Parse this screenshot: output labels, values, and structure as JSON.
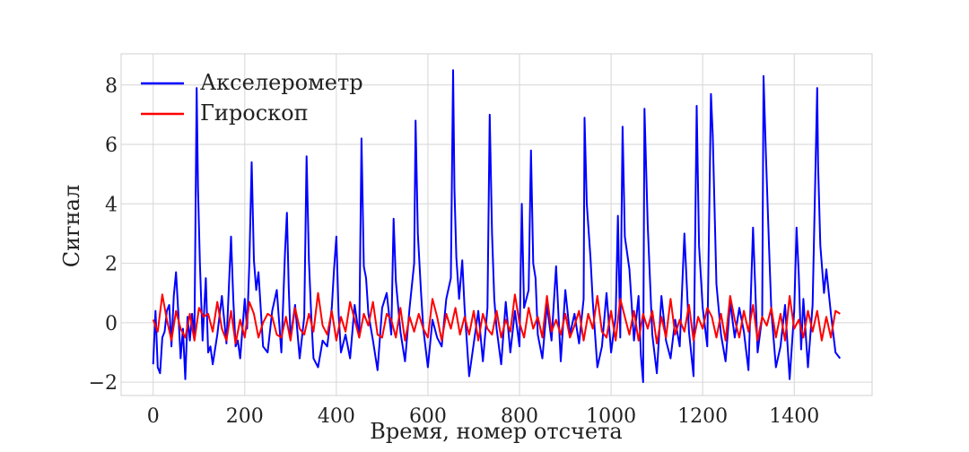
{
  "chart_data": {
    "type": "line",
    "xlabel": "Время, номер отсчета",
    "ylabel": "Сигнал",
    "xlim": [
      -70,
      1570
    ],
    "ylim": [
      -2.45,
      9.05
    ],
    "xticks": [
      0,
      200,
      400,
      600,
      800,
      1000,
      1200,
      1400
    ],
    "yticks": [
      -2,
      0,
      2,
      4,
      6,
      8
    ],
    "ytick_labels": [
      "−2",
      "0",
      "2",
      "4",
      "6",
      "8"
    ],
    "grid": true,
    "legend": "top-left",
    "series": [
      {
        "name": "Акселерометр",
        "color": "#0000ff",
        "x": [
          0,
          5,
          10,
          15,
          20,
          25,
          30,
          35,
          40,
          45,
          50,
          55,
          60,
          65,
          70,
          75,
          80,
          85,
          90,
          95,
          98,
          102,
          108,
          115,
          120,
          125,
          130,
          140,
          150,
          160,
          170,
          175,
          180,
          185,
          190,
          200,
          205,
          210,
          215,
          220,
          225,
          230,
          240,
          250,
          260,
          270,
          280,
          288,
          292,
          296,
          300,
          310,
          320,
          330,
          335,
          340,
          345,
          350,
          360,
          370,
          380,
          390,
          395,
          400,
          405,
          410,
          420,
          430,
          440,
          450,
          455,
          460,
          465,
          470,
          480,
          490,
          500,
          510,
          520,
          525,
          530,
          540,
          550,
          560,
          570,
          573,
          578,
          585,
          590,
          600,
          610,
          620,
          630,
          640,
          650,
          655,
          658,
          662,
          668,
          675,
          680,
          690,
          700,
          710,
          720,
          730,
          735,
          740,
          745,
          750,
          760,
          770,
          780,
          790,
          800,
          805,
          810,
          820,
          825,
          830,
          835,
          840,
          850,
          860,
          870,
          880,
          890,
          900,
          910,
          920,
          930,
          940,
          942,
          947,
          955,
          960,
          970,
          980,
          990,
          1000,
          1010,
          1015,
          1020,
          1025,
          1030,
          1040,
          1050,
          1060,
          1065,
          1070,
          1073,
          1080,
          1090,
          1100,
          1110,
          1120,
          1130,
          1140,
          1150,
          1160,
          1170,
          1180,
          1187,
          1192,
          1200,
          1210,
          1218,
          1222,
          1230,
          1240,
          1250,
          1260,
          1270,
          1280,
          1290,
          1300,
          1310,
          1320,
          1330,
          1333,
          1338,
          1345,
          1350,
          1360,
          1370,
          1380,
          1390,
          1400,
          1405,
          1410,
          1415,
          1420,
          1430,
          1440,
          1450,
          1452,
          1457,
          1465,
          1470,
          1480,
          1490,
          1500
        ],
        "values": [
          -1.4,
          0.4,
          -1.5,
          -1.7,
          -0.5,
          -0.3,
          0.4,
          0.6,
          -0.8,
          0.9,
          1.7,
          0.3,
          -1.2,
          -0.2,
          -1.9,
          0.2,
          -0.6,
          0.3,
          -0.5,
          7.9,
          4.5,
          2.0,
          -0.6,
          1.5,
          -1.0,
          -0.8,
          -1.4,
          -0.4,
          0.9,
          -0.7,
          2.9,
          0.8,
          -0.8,
          -0.6,
          -1.2,
          0.8,
          -0.2,
          2.0,
          5.4,
          2.1,
          1.1,
          1.7,
          -0.8,
          -1.0,
          0.4,
          1.1,
          -1.0,
          2.4,
          3.7,
          1.2,
          -0.5,
          0.6,
          -1.2,
          0.2,
          5.6,
          2.1,
          0.3,
          -1.2,
          -1.5,
          -0.6,
          -0.8,
          0.5,
          1.8,
          2.9,
          0.3,
          -1.0,
          -0.4,
          -1.2,
          0.6,
          -0.5,
          6.2,
          1.9,
          1.5,
          0.3,
          -0.6,
          -1.6,
          0.5,
          1.0,
          -0.4,
          3.5,
          1.4,
          -0.3,
          -1.3,
          0.5,
          2.0,
          6.8,
          3.0,
          1.0,
          -0.2,
          -1.5,
          0.1,
          -0.5,
          -0.8,
          0.8,
          1.5,
          8.5,
          4.5,
          2.2,
          0.8,
          2.1,
          0.5,
          -1.8,
          -0.7,
          0.4,
          -1.3,
          0.5,
          7.0,
          3.0,
          0.8,
          -0.2,
          -1.4,
          0.7,
          -1.0,
          0.4,
          -0.8,
          4.0,
          0.5,
          1.1,
          5.8,
          2.0,
          1.5,
          -0.4,
          -1.2,
          0.6,
          -0.6,
          1.9,
          -1.3,
          1.1,
          -0.4,
          0.3,
          -0.7,
          0.8,
          6.9,
          4.0,
          2.2,
          0.7,
          -1.5,
          -0.8,
          1.0,
          -1.0,
          0.2,
          3.6,
          -0.5,
          6.6,
          2.9,
          1.8,
          -0.6,
          0.9,
          -1.1,
          -2.0,
          7.2,
          3.3,
          -0.4,
          -1.7,
          0.9,
          -0.6,
          -1.2,
          0.1,
          -0.8,
          3.0,
          -0.3,
          -1.8,
          7.3,
          2.6,
          0.5,
          -0.8,
          7.7,
          6.3,
          1.3,
          -0.4,
          -1.3,
          0.7,
          -0.5,
          0.5,
          -0.3,
          -1.6,
          3.2,
          -1.0,
          0.2,
          8.3,
          5.7,
          2.5,
          0.4,
          -1.5,
          -0.8,
          0.6,
          -1.9,
          0.4,
          3.2,
          1.6,
          -0.9,
          0.8,
          -1.5,
          0.6,
          7.9,
          5.3,
          2.6,
          1.0,
          1.8,
          0.3,
          -1.0,
          -1.2
        ]
      },
      {
        "name": "Гироскоп",
        "color": "#ff0000",
        "x": [
          0,
          10,
          20,
          30,
          40,
          50,
          60,
          70,
          80,
          90,
          100,
          110,
          120,
          130,
          140,
          150,
          160,
          170,
          180,
          190,
          200,
          210,
          220,
          230,
          240,
          250,
          260,
          270,
          280,
          290,
          300,
          310,
          320,
          330,
          340,
          350,
          360,
          370,
          380,
          390,
          400,
          410,
          420,
          430,
          440,
          450,
          460,
          470,
          480,
          490,
          500,
          510,
          520,
          530,
          540,
          550,
          560,
          570,
          580,
          590,
          600,
          610,
          620,
          630,
          640,
          650,
          660,
          670,
          680,
          690,
          700,
          710,
          720,
          730,
          740,
          750,
          760,
          770,
          780,
          790,
          800,
          810,
          820,
          830,
          840,
          850,
          860,
          870,
          880,
          890,
          900,
          910,
          920,
          930,
          940,
          950,
          960,
          970,
          980,
          990,
          1000,
          1010,
          1020,
          1030,
          1040,
          1050,
          1060,
          1070,
          1080,
          1090,
          1100,
          1110,
          1120,
          1130,
          1140,
          1150,
          1160,
          1170,
          1180,
          1190,
          1200,
          1210,
          1220,
          1230,
          1240,
          1250,
          1260,
          1270,
          1280,
          1290,
          1300,
          1310,
          1320,
          1330,
          1340,
          1350,
          1360,
          1370,
          1380,
          1390,
          1400,
          1410,
          1420,
          1430,
          1440,
          1450,
          1460,
          1470,
          1480,
          1490,
          1500
        ],
        "values": [
          0.1,
          -0.3,
          0.95,
          0.1,
          -0.6,
          0.4,
          -0.2,
          -0.5,
          0.3,
          -0.6,
          0.5,
          0.2,
          0.3,
          -0.3,
          0.7,
          -0.2,
          -0.6,
          0.4,
          -0.7,
          0.1,
          -0.5,
          0.7,
          0.3,
          -0.5,
          0.0,
          0.3,
          0.2,
          -0.4,
          -0.5,
          0.2,
          -0.6,
          0.5,
          -0.2,
          -0.4,
          0.3,
          -0.3,
          1.0,
          -0.1,
          -0.4,
          0.4,
          -0.6,
          0.2,
          -0.3,
          0.7,
          0.1,
          -0.5,
          0.3,
          -0.1,
          0.7,
          -0.4,
          -0.5,
          0.3,
          0.1,
          -0.5,
          0.5,
          -0.6,
          0.2,
          -0.3,
          0.3,
          -0.2,
          -0.5,
          0.8,
          0.2,
          -0.6,
          0.3,
          -0.2,
          0.5,
          -0.4,
          0.2,
          -0.4,
          0.4,
          -0.6,
          0.3,
          -0.2,
          -0.4,
          0.4,
          -0.5,
          0.1,
          -0.3,
          0.95,
          0.0,
          -0.5,
          0.5,
          -0.2,
          0.2,
          -0.5,
          0.9,
          -0.3,
          0.1,
          -0.4,
          0.3,
          -0.5,
          -0.1,
          0.4,
          -0.6,
          0.3,
          -0.2,
          0.9,
          -0.3,
          -0.5,
          0.4,
          -0.6,
          0.8,
          0.2,
          -0.4,
          0.4,
          -0.6,
          0.3,
          -0.2,
          0.4,
          -0.7,
          0.2,
          -0.5,
          0.8,
          -0.4,
          0.1,
          -0.3,
          0.6,
          -0.6,
          0.2,
          -0.2,
          0.5,
          0.2,
          -0.5,
          0.3,
          -0.6,
          0.9,
          0.1,
          -0.5,
          0.4,
          -0.3,
          0.6,
          -0.6,
          0.2,
          -0.1,
          0.5,
          -0.5,
          0.3,
          -0.6,
          0.9,
          -0.2,
          0.1,
          -0.5,
          0.4,
          -0.3,
          0.4,
          -0.6,
          0.2,
          -0.5,
          0.4,
          0.3
        ]
      }
    ]
  }
}
